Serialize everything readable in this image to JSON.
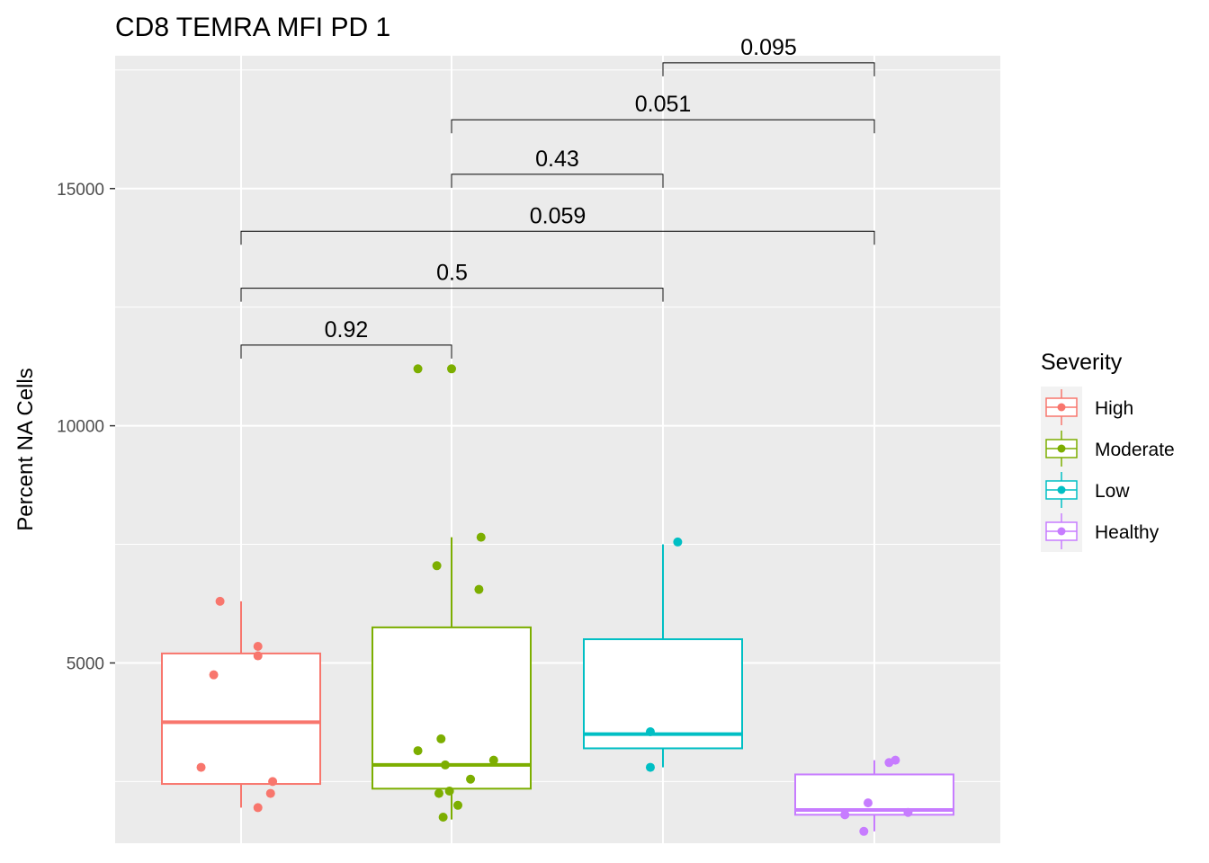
{
  "chart_data": {
    "type": "box",
    "title": "CD8 TEMRA MFI PD 1",
    "ylabel": "Percent NA Cells",
    "xlabel": "",
    "ylim": [
      1200,
      17800
    ],
    "yticks": [
      5000,
      10000,
      15000
    ],
    "ytick_labels": [
      "5000",
      "10000",
      "15000"
    ],
    "grid": true,
    "legend": {
      "title": "Severity",
      "placement": "right",
      "entries": [
        "High",
        "Moderate",
        "Low",
        "Healthy"
      ]
    },
    "groups": [
      {
        "name": "High",
        "color": "#F8766D",
        "box": {
          "whisker_low": 1950,
          "q1": 2450,
          "median": 3750,
          "q3": 5200,
          "whisker_high": 6300
        },
        "points": [
          [
            -0.1,
            6300
          ],
          [
            0.08,
            5350
          ],
          [
            0.08,
            5150
          ],
          [
            -0.13,
            4750
          ],
          [
            -0.19,
            2800
          ],
          [
            0.15,
            2500
          ],
          [
            0.14,
            2250
          ],
          [
            0.08,
            1950
          ]
        ]
      },
      {
        "name": "Moderate",
        "color": "#7CAE00",
        "box": {
          "whisker_low": 1700,
          "q1": 2350,
          "median": 2850,
          "q3": 5750,
          "whisker_high": 7650
        },
        "points": [
          [
            -0.16,
            11200
          ],
          [
            0.0,
            11200
          ],
          [
            0.14,
            7650
          ],
          [
            -0.07,
            7050
          ],
          [
            0.13,
            6550
          ],
          [
            -0.05,
            3400
          ],
          [
            -0.16,
            3150
          ],
          [
            0.2,
            2950
          ],
          [
            -0.03,
            2850
          ],
          [
            0.09,
            2550
          ],
          [
            -0.01,
            2300
          ],
          [
            -0.06,
            2250
          ],
          [
            0.03,
            2000
          ],
          [
            -0.04,
            1750
          ]
        ]
      },
      {
        "name": "Low",
        "color": "#00BFC4",
        "box": {
          "whisker_low": 2800,
          "q1": 3200,
          "median": 3500,
          "q3": 5500,
          "whisker_high": 7500
        },
        "points": [
          [
            0.07,
            7550
          ],
          [
            -0.06,
            3550
          ],
          [
            -0.06,
            2800
          ]
        ]
      },
      {
        "name": "Healthy",
        "color": "#C77CFF",
        "box": {
          "whisker_low": 1450,
          "q1": 1800,
          "median": 1900,
          "q3": 2650,
          "whisker_high": 2950
        },
        "points": [
          [
            0.1,
            2950
          ],
          [
            0.07,
            2900
          ],
          [
            -0.03,
            2050
          ],
          [
            0.16,
            1850
          ],
          [
            -0.14,
            1800
          ],
          [
            -0.05,
            1450
          ]
        ]
      }
    ],
    "comparisons": [
      {
        "from": 0,
        "to": 1,
        "label": "0.92",
        "y": 11700
      },
      {
        "from": 0,
        "to": 2,
        "label": "0.5",
        "y": 12900
      },
      {
        "from": 0,
        "to": 3,
        "label": "0.059",
        "y": 14100
      },
      {
        "from": 1,
        "to": 2,
        "label": "0.43",
        "y": 15300
      },
      {
        "from": 1,
        "to": 3,
        "label": "0.051",
        "y": 16450
      },
      {
        "from": 2,
        "to": 3,
        "label": "0.095",
        "y": 17650
      }
    ]
  }
}
